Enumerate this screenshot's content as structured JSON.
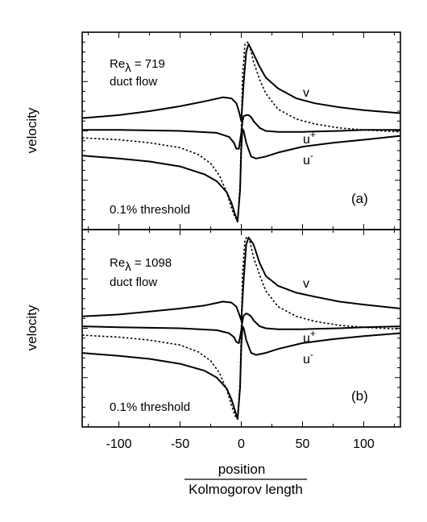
{
  "chart_data": {
    "type": "line",
    "xlabel_numerator": "position",
    "xlabel_denominator": "Kolmogorov length",
    "xlim": [
      -130,
      130
    ],
    "xticks": [
      -100,
      -50,
      0,
      50,
      100
    ],
    "panels": [
      {
        "tag": "(a)",
        "ylabel": "velocity",
        "re_prefix": "Re",
        "re_sub": "λ",
        "re_value": " = 719",
        "flow": "duct flow",
        "threshold": "0.1% threshold",
        "ylim": [
          -1.0,
          1.0
        ],
        "labels": {
          "v": "v",
          "u": "u",
          "plus": "+",
          "minus": "-"
        },
        "series": [
          {
            "key": "v",
            "style": "solid",
            "x": [
              -130,
              -100,
              -75,
              -50,
              -30,
              -15,
              -8,
              -4,
              -2,
              0,
              2,
              4,
              6,
              10,
              15,
              20,
              30,
              45,
              60,
              80,
              100,
              130
            ],
            "y": [
              0.13,
              0.16,
              0.2,
              0.25,
              0.3,
              0.34,
              0.33,
              0.28,
              0.2,
              0.1,
              0.5,
              0.8,
              0.88,
              0.78,
              0.65,
              0.54,
              0.43,
              0.33,
              0.28,
              0.24,
              0.21,
              0.18
            ]
          },
          {
            "key": "u_plus",
            "style": "solid",
            "x": [
              -130,
              -100,
              -50,
              -20,
              -10,
              -6,
              -4,
              -2,
              0,
              1,
              2,
              4,
              6,
              8,
              10,
              15,
              20,
              30,
              50,
              80,
              100,
              130
            ],
            "y": [
              0.01,
              0.01,
              0.0,
              -0.02,
              -0.06,
              -0.12,
              -0.18,
              -0.18,
              -0.02,
              0.1,
              0.15,
              0.16,
              0.16,
              0.14,
              0.1,
              0.03,
              0.0,
              -0.01,
              -0.01,
              0.0,
              0.01,
              0.01
            ]
          },
          {
            "key": "u_minus",
            "style": "solid",
            "x": [
              -130,
              -100,
              -75,
              -50,
              -30,
              -20,
              -12,
              -8,
              -5,
              -3,
              -1,
              0,
              1,
              2,
              4,
              8,
              12,
              20,
              30,
              50,
              75,
              100,
              130
            ],
            "y": [
              -0.25,
              -0.28,
              -0.31,
              -0.36,
              -0.44,
              -0.51,
              -0.62,
              -0.73,
              -0.85,
              -0.92,
              -0.6,
              -0.18,
              0.02,
              0.0,
              -0.12,
              -0.26,
              -0.28,
              -0.26,
              -0.22,
              -0.16,
              -0.12,
              -0.09,
              -0.05
            ]
          },
          {
            "key": "dotted",
            "style": "dotted",
            "x": [
              -130,
              -100,
              -75,
              -50,
              -35,
              -25,
              -18,
              -12,
              -8,
              -5,
              -3,
              -1,
              0,
              1,
              3,
              5,
              7,
              10,
              15,
              20,
              30,
              45,
              60,
              80,
              100,
              130
            ],
            "y": [
              -0.07,
              -0.09,
              -0.12,
              -0.17,
              -0.24,
              -0.33,
              -0.45,
              -0.62,
              -0.78,
              -0.88,
              -0.9,
              -0.55,
              0.0,
              0.55,
              0.88,
              0.9,
              0.86,
              0.7,
              0.52,
              0.38,
              0.22,
              0.12,
              0.07,
              0.03,
              0.01,
              -0.01
            ]
          }
        ]
      },
      {
        "tag": "(b)",
        "ylabel": "velocity",
        "re_prefix": "Re",
        "re_sub": "λ",
        "re_value": " = 1098",
        "flow": "duct flow",
        "threshold": "0.1% threshold",
        "ylim": [
          -1.0,
          1.0
        ],
        "labels": {
          "v": "v",
          "u": "u",
          "plus": "+",
          "minus": "-"
        },
        "series": [
          {
            "key": "v",
            "style": "solid",
            "x": [
              -130,
              -100,
              -75,
              -50,
              -30,
              -15,
              -8,
              -4,
              -2,
              0,
              2,
              4,
              6,
              10,
              15,
              20,
              30,
              45,
              60,
              80,
              100,
              130
            ],
            "y": [
              0.12,
              0.14,
              0.17,
              0.2,
              0.23,
              0.27,
              0.26,
              0.22,
              0.15,
              0.08,
              0.5,
              0.85,
              0.92,
              0.85,
              0.66,
              0.53,
              0.43,
              0.36,
              0.32,
              0.27,
              0.24,
              0.2
            ]
          },
          {
            "key": "u_plus",
            "style": "solid",
            "x": [
              -130,
              -100,
              -50,
              -20,
              -10,
              -6,
              -4,
              -2,
              0,
              1,
              2,
              4,
              6,
              8,
              10,
              15,
              20,
              30,
              50,
              80,
              100,
              130
            ],
            "y": [
              0.02,
              0.01,
              0.0,
              -0.02,
              -0.05,
              -0.09,
              -0.14,
              -0.15,
              -0.02,
              0.08,
              0.13,
              0.15,
              0.14,
              0.12,
              0.08,
              0.02,
              0.0,
              -0.01,
              -0.01,
              0.0,
              0.01,
              0.02
            ]
          },
          {
            "key": "u_minus",
            "style": "solid",
            "x": [
              -130,
              -100,
              -75,
              -50,
              -30,
              -20,
              -12,
              -8,
              -5,
              -3,
              -1,
              0,
              1,
              2,
              4,
              8,
              12,
              20,
              30,
              50,
              75,
              100,
              130
            ],
            "y": [
              -0.25,
              -0.28,
              -0.31,
              -0.36,
              -0.43,
              -0.5,
              -0.61,
              -0.72,
              -0.84,
              -0.92,
              -0.6,
              -0.18,
              0.02,
              0.0,
              -0.12,
              -0.25,
              -0.27,
              -0.25,
              -0.21,
              -0.15,
              -0.11,
              -0.08,
              -0.05
            ]
          },
          {
            "key": "dotted",
            "style": "dotted",
            "x": [
              -130,
              -100,
              -75,
              -50,
              -35,
              -25,
              -18,
              -12,
              -8,
              -5,
              -3,
              -1,
              0,
              1,
              3,
              5,
              7,
              10,
              15,
              20,
              30,
              45,
              60,
              80,
              100,
              130
            ],
            "y": [
              -0.07,
              -0.09,
              -0.12,
              -0.17,
              -0.24,
              -0.33,
              -0.45,
              -0.62,
              -0.78,
              -0.89,
              -0.92,
              -0.55,
              0.0,
              0.55,
              0.9,
              0.93,
              0.88,
              0.72,
              0.54,
              0.38,
              0.22,
              0.12,
              0.07,
              0.03,
              0.01,
              -0.01
            ]
          }
        ]
      }
    ]
  }
}
